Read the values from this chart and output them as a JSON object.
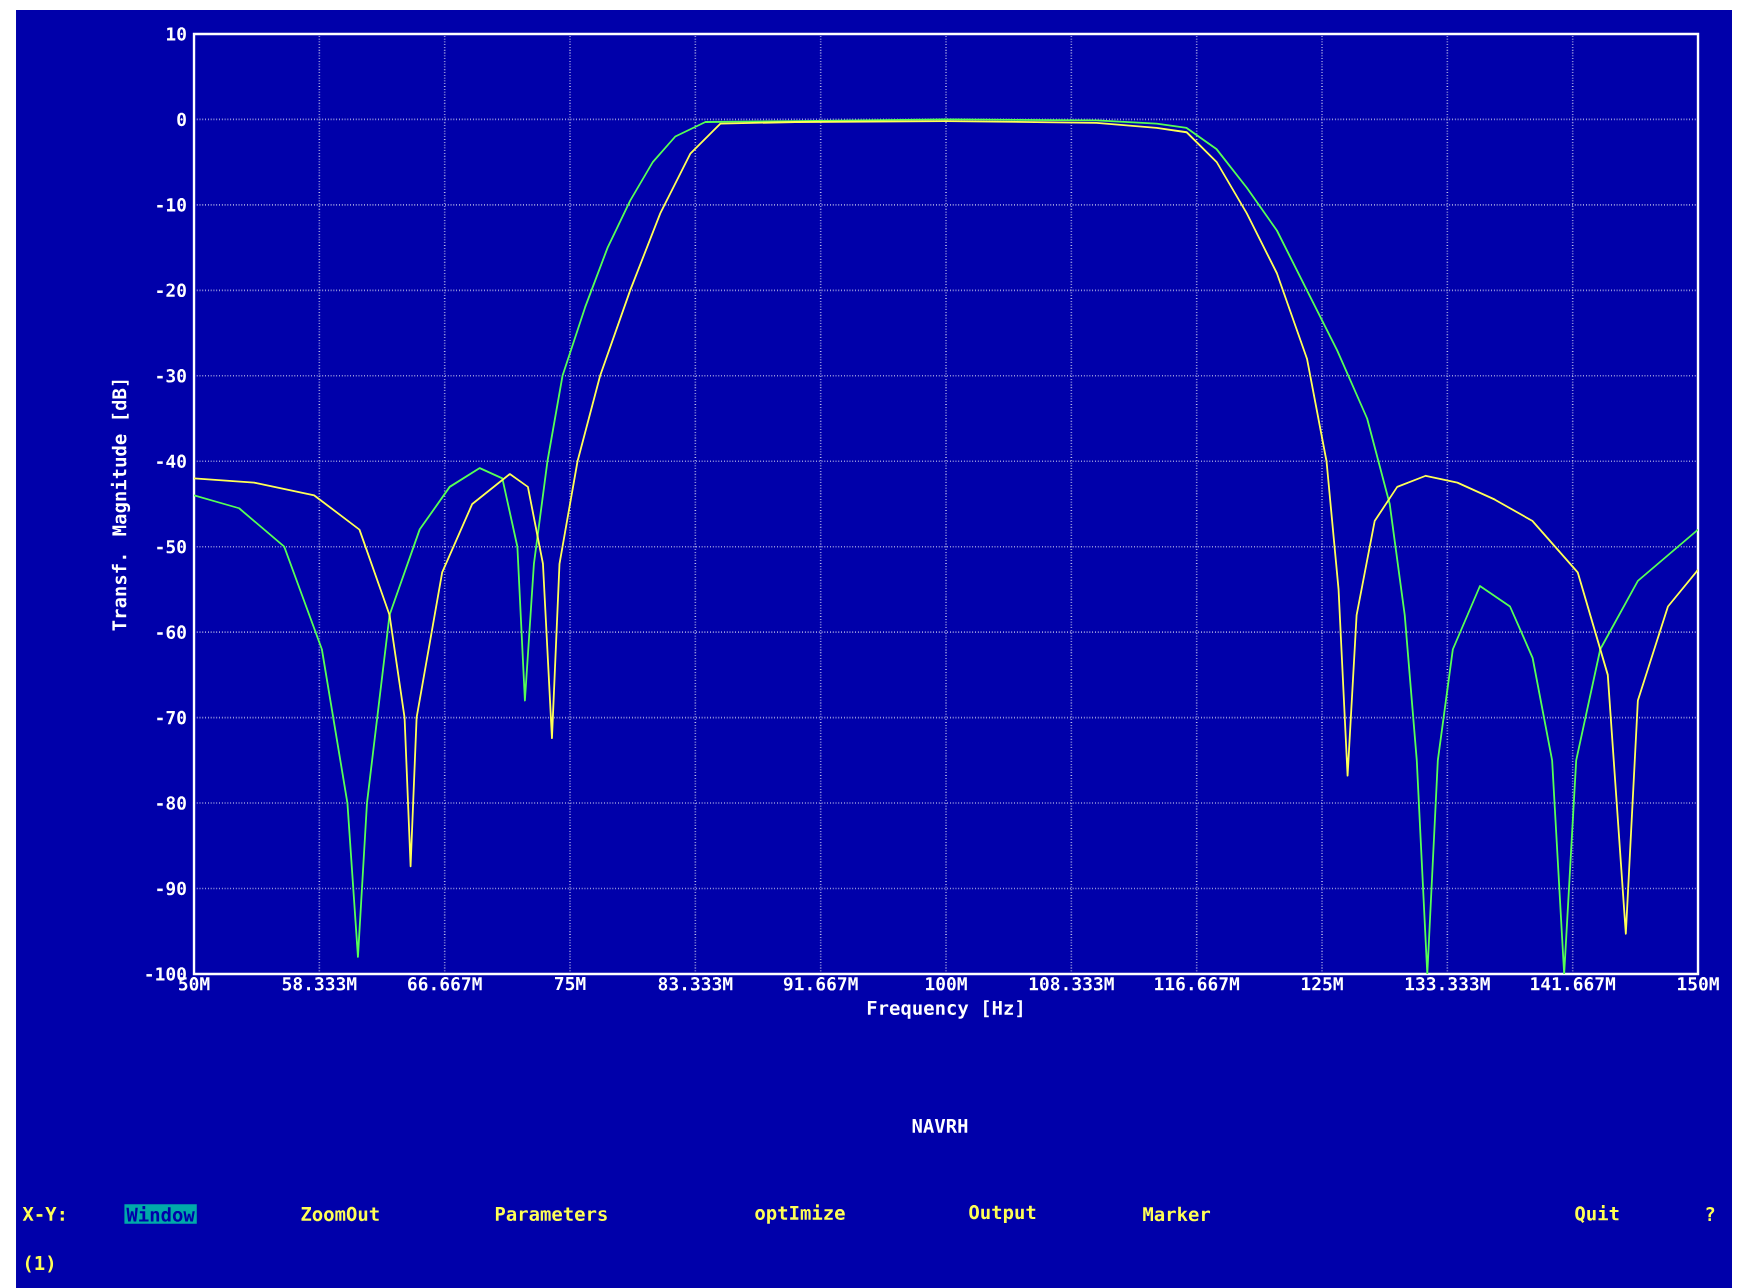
{
  "chart_data": {
    "type": "line",
    "title": "NAVRH",
    "xlabel": "Frequency [Hz]",
    "ylabel": "Transf. Magnitude [dB]",
    "xlim": [
      50000000,
      150000000
    ],
    "ylim": [
      -100,
      10
    ],
    "xticks": [
      {
        "value": 50000000,
        "label": "50M"
      },
      {
        "value": 58333333.33,
        "label": "58.333M"
      },
      {
        "value": 66666666.67,
        "label": "66.667M"
      },
      {
        "value": 75000000,
        "label": "75M"
      },
      {
        "value": 83333333.33,
        "label": "83.333M"
      },
      {
        "value": 91666666.67,
        "label": "91.667M"
      },
      {
        "value": 100000000,
        "label": "100M"
      },
      {
        "value": 108333333.33,
        "label": "108.333M"
      },
      {
        "value": 116666666.67,
        "label": "116.667M"
      },
      {
        "value": 125000000,
        "label": "125M"
      },
      {
        "value": 133333333.33,
        "label": "133.333M"
      },
      {
        "value": 141666666.67,
        "label": "141.667M"
      },
      {
        "value": 150000000,
        "label": "150M"
      }
    ],
    "yticks": [
      10,
      0,
      -10,
      -20,
      -30,
      -40,
      -50,
      -60,
      -70,
      -80,
      -90,
      -100
    ],
    "grid": true,
    "series": [
      {
        "color": "#55ff55",
        "x": [
          50000000,
          53000000,
          56000000,
          58500000,
          60200000,
          60900000,
          61500000,
          63000000,
          65000000,
          67000000,
          69000000,
          70500000,
          71500000,
          72000000,
          72600000,
          73500000,
          74500000,
          76000000,
          77500000,
          79000000,
          80500000,
          82000000,
          84000000,
          90000000,
          100000000,
          110000000,
          114000000,
          116000000,
          118000000,
          120000000,
          122000000,
          124000000,
          126000000,
          128000000,
          129500000,
          130500000,
          131300000,
          132000000,
          132700000,
          133700000,
          135500000,
          137500000,
          139000000,
          140300000,
          141100000,
          141900000,
          143500000,
          146000000,
          150000000
        ],
        "values": [
          -44,
          -45.5,
          -50,
          -62,
          -80,
          -98,
          -80,
          -58,
          -48,
          -43,
          -40.8,
          -42,
          -50,
          -68,
          -52,
          -40,
          -30,
          -22,
          -15,
          -9.5,
          -5,
          -2,
          -0.3,
          -0.2,
          0,
          -0.1,
          -0.5,
          -1,
          -3.5,
          -8,
          -13,
          -20,
          -27,
          -35,
          -45,
          -58,
          -75,
          -100,
          -75,
          -62,
          -54.6,
          -57,
          -63,
          -75,
          -100,
          -75,
          -62,
          -54,
          -48
        ]
      },
      {
        "color": "#ffff55",
        "x": [
          50000000,
          54000000,
          58000000,
          61000000,
          63000000,
          64000000,
          64400000,
          64800000,
          66500000,
          68500000,
          71000000,
          72200000,
          73200000,
          73800000,
          74300000,
          75500000,
          77000000,
          79000000,
          81000000,
          83000000,
          85000000,
          90000000,
          100000000,
          110000000,
          114000000,
          116000000,
          118000000,
          120000000,
          122000000,
          124000000,
          125300000,
          126100000,
          126700000,
          127300000,
          128500000,
          130000000,
          131900000,
          134000000,
          136500000,
          139000000,
          142000000,
          144000000,
          145200000,
          146000000,
          148000000,
          150000000
        ],
        "values": [
          -42,
          -42.5,
          -44,
          -48,
          -58,
          -70,
          -87.4,
          -70,
          -53,
          -45,
          -41.5,
          -43,
          -52,
          -72.4,
          -52,
          -40,
          -30,
          -20,
          -11,
          -4,
          -0.5,
          -0.3,
          -0.2,
          -0.4,
          -1,
          -1.5,
          -5,
          -11,
          -18,
          -28,
          -40,
          -55,
          -76.8,
          -58,
          -47,
          -43,
          -41.7,
          -42.5,
          -44.5,
          -47,
          -53,
          -65,
          -95.3,
          -68,
          -57,
          -52.7
        ]
      }
    ],
    "annotations": [
      "X-Y:",
      "Window",
      "ZoomOut",
      "Parameters",
      "optImize",
      "Output",
      "Marker",
      "Quit",
      "?",
      "(1)"
    ]
  }
}
